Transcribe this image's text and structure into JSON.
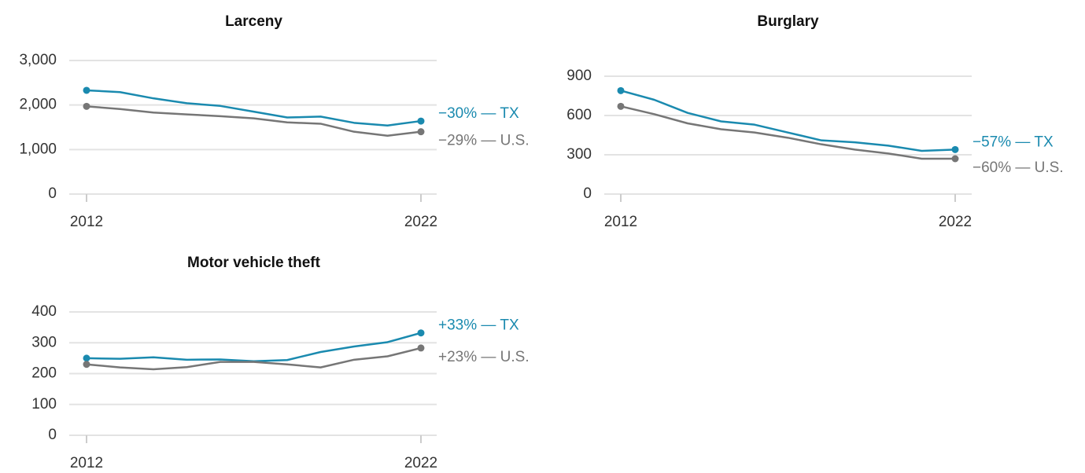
{
  "chart_data": [
    {
      "type": "line",
      "title": "Larceny",
      "x": [
        2012,
        2013,
        2014,
        2015,
        2016,
        2017,
        2018,
        2019,
        2020,
        2021,
        2022
      ],
      "xlim": [
        2012,
        2022
      ],
      "xticks": [
        2012,
        2022
      ],
      "ylim": [
        0,
        3000
      ],
      "yticks": [
        0,
        {
          "value": 1000,
          "label": "1,000"
        },
        {
          "value": 2000,
          "label": "2,000"
        },
        {
          "value": 3000,
          "label": "3,000"
        }
      ],
      "grid": true,
      "series": [
        {
          "name": "−30% — TX",
          "color": "#1a8aaf",
          "values": [
            2330,
            2290,
            2150,
            2040,
            1980,
            1850,
            1720,
            1740,
            1600,
            1540,
            1640
          ]
        },
        {
          "name": "−29% — U.S.",
          "color": "#767676",
          "values": [
            1970,
            1910,
            1830,
            1790,
            1750,
            1700,
            1610,
            1580,
            1400,
            1310,
            1400
          ]
        }
      ]
    },
    {
      "type": "line",
      "title": "Burglary",
      "x": [
        2012,
        2013,
        2014,
        2015,
        2016,
        2017,
        2018,
        2019,
        2020,
        2021,
        2022
      ],
      "xlim": [
        2012,
        2022
      ],
      "xticks": [
        2012,
        2022
      ],
      "ylim": [
        0,
        900
      ],
      "yticks": [
        0,
        300,
        600,
        900
      ],
      "grid": true,
      "series": [
        {
          "name": "−57% — TX",
          "color": "#1a8aaf",
          "values": [
            790,
            720,
            620,
            555,
            530,
            470,
            410,
            395,
            370,
            330,
            340
          ]
        },
        {
          "name": "−60% — U.S.",
          "color": "#767676",
          "values": [
            670,
            610,
            540,
            495,
            470,
            430,
            380,
            340,
            310,
            270,
            270
          ]
        }
      ]
    },
    {
      "type": "line",
      "title": "Motor vehicle theft",
      "x": [
        2012,
        2013,
        2014,
        2015,
        2016,
        2017,
        2018,
        2019,
        2020,
        2021,
        2022
      ],
      "xlim": [
        2012,
        2022
      ],
      "xticks": [
        2012,
        2022
      ],
      "ylim": [
        0,
        400
      ],
      "yticks": [
        0,
        100,
        200,
        300,
        400
      ],
      "grid": true,
      "series": [
        {
          "name": "+33% — TX",
          "color": "#1a8aaf",
          "values": [
            250,
            248,
            253,
            245,
            246,
            240,
            244,
            270,
            288,
            302,
            332
          ]
        },
        {
          "name": "+23% — U.S.",
          "color": "#767676",
          "values": [
            230,
            220,
            214,
            221,
            238,
            238,
            230,
            220,
            245,
            256,
            283
          ]
        }
      ]
    }
  ]
}
